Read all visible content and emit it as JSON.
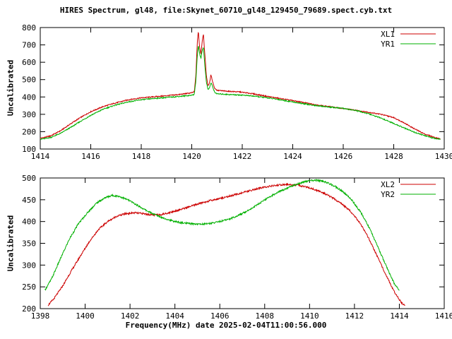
{
  "title": "HIRES Spectrum, gl48, file:Skynet_60710_gl48_129450_79689.spect.cyb.txt",
  "xlabel": "Frequency(MHz) date 2025-02-04T11:00:56.000",
  "background_color": "#ffffff",
  "axis_color": "#000000",
  "chart_data": [
    {
      "type": "line",
      "title": "",
      "xlabel": "",
      "ylabel": "Uncalibrated",
      "xlim": [
        1414,
        1430
      ],
      "ylim": [
        100,
        800
      ],
      "xticks": [
        1414,
        1416,
        1418,
        1420,
        1422,
        1424,
        1426,
        1428,
        1430
      ],
      "yticks": [
        100,
        200,
        300,
        400,
        500,
        600,
        700,
        800
      ],
      "grid": false,
      "legend_position": "top-right",
      "series": [
        {
          "name": "XL1",
          "color": "#cc0000",
          "points": [
            [
              1414,
              162
            ],
            [
              1414.4,
              175
            ],
            [
              1414.8,
              205
            ],
            [
              1415.2,
              245
            ],
            [
              1415.6,
              282
            ],
            [
              1416,
              315
            ],
            [
              1416.5,
              345
            ],
            [
              1417,
              366
            ],
            [
              1417.5,
              384
            ],
            [
              1418,
              395
            ],
            [
              1418.5,
              401
            ],
            [
              1419,
              407
            ],
            [
              1419.5,
              414
            ],
            [
              1420,
              424
            ],
            [
              1420.1,
              430
            ],
            [
              1420.16,
              520
            ],
            [
              1420.22,
              720
            ],
            [
              1420.26,
              780
            ],
            [
              1420.3,
              700
            ],
            [
              1420.36,
              645
            ],
            [
              1420.42,
              730
            ],
            [
              1420.46,
              765
            ],
            [
              1420.52,
              640
            ],
            [
              1420.58,
              520
            ],
            [
              1420.64,
              465
            ],
            [
              1420.7,
              478
            ],
            [
              1420.76,
              528
            ],
            [
              1420.82,
              492
            ],
            [
              1420.9,
              452
            ],
            [
              1421,
              438
            ],
            [
              1421.4,
              433
            ],
            [
              1421.9,
              429
            ],
            [
              1422.4,
              419
            ],
            [
              1423,
              403
            ],
            [
              1423.5,
              391
            ],
            [
              1424,
              379
            ],
            [
              1424.5,
              366
            ],
            [
              1425,
              353
            ],
            [
              1425.5,
              343
            ],
            [
              1426,
              333
            ],
            [
              1426.5,
              323
            ],
            [
              1427,
              312
            ],
            [
              1427.5,
              300
            ],
            [
              1428,
              281
            ],
            [
              1428.4,
              252
            ],
            [
              1428.8,
              218
            ],
            [
              1429.2,
              188
            ],
            [
              1429.6,
              168
            ],
            [
              1429.85,
              158
            ]
          ]
        },
        {
          "name": "YR1",
          "color": "#00b000",
          "points": [
            [
              1414,
              156
            ],
            [
              1414.4,
              166
            ],
            [
              1414.8,
              190
            ],
            [
              1415.2,
              224
            ],
            [
              1415.6,
              260
            ],
            [
              1416,
              294
            ],
            [
              1416.5,
              330
            ],
            [
              1417,
              354
            ],
            [
              1417.5,
              372
            ],
            [
              1418,
              384
            ],
            [
              1418.5,
              391
            ],
            [
              1419,
              397
            ],
            [
              1419.5,
              403
            ],
            [
              1420,
              410
            ],
            [
              1420.1,
              416
            ],
            [
              1420.16,
              490
            ],
            [
              1420.22,
              640
            ],
            [
              1420.26,
              700
            ],
            [
              1420.3,
              655
            ],
            [
              1420.36,
              622
            ],
            [
              1420.42,
              672
            ],
            [
              1420.46,
              688
            ],
            [
              1420.52,
              575
            ],
            [
              1420.58,
              485
            ],
            [
              1420.64,
              442
            ],
            [
              1420.7,
              452
            ],
            [
              1420.76,
              482
            ],
            [
              1420.82,
              462
            ],
            [
              1420.9,
              428
            ],
            [
              1421,
              418
            ],
            [
              1421.5,
              414
            ],
            [
              1422,
              411
            ],
            [
              1422.5,
              404
            ],
            [
              1423,
              395
            ],
            [
              1423.5,
              384
            ],
            [
              1424,
              371
            ],
            [
              1424.5,
              359
            ],
            [
              1425,
              349
            ],
            [
              1425.5,
              341
            ],
            [
              1426,
              334
            ],
            [
              1426.5,
              322
            ],
            [
              1427,
              303
            ],
            [
              1427.5,
              278
            ],
            [
              1428,
              247
            ],
            [
              1428.4,
              222
            ],
            [
              1428.8,
              198
            ],
            [
              1429.2,
              178
            ],
            [
              1429.6,
              162
            ],
            [
              1429.85,
              156
            ]
          ]
        }
      ]
    },
    {
      "type": "line",
      "title": "",
      "xlabel": "Frequency(MHz) date 2025-02-04T11:00:56.000",
      "ylabel": "Uncalibrated",
      "xlim": [
        1398,
        1416
      ],
      "ylim": [
        200,
        500
      ],
      "xticks": [
        1398,
        1400,
        1402,
        1404,
        1406,
        1408,
        1410,
        1412,
        1414,
        1416
      ],
      "yticks": [
        200,
        250,
        300,
        350,
        400,
        450,
        500
      ],
      "grid": false,
      "legend_position": "top-right",
      "series": [
        {
          "name": "XL2",
          "color": "#cc0000",
          "points": [
            [
              1398.35,
              208
            ],
            [
              1398.6,
              222
            ],
            [
              1399,
              252
            ],
            [
              1399.4,
              288
            ],
            [
              1399.8,
              322
            ],
            [
              1400.2,
              355
            ],
            [
              1400.6,
              382
            ],
            [
              1401,
              400
            ],
            [
              1401.4,
              412
            ],
            [
              1401.8,
              418
            ],
            [
              1402.2,
              420
            ],
            [
              1402.6,
              418
            ],
            [
              1403,
              415
            ],
            [
              1403.4,
              416
            ],
            [
              1403.8,
              421
            ],
            [
              1404.2,
              427
            ],
            [
              1404.6,
              433
            ],
            [
              1405,
              440
            ],
            [
              1405.5,
              447
            ],
            [
              1406,
              453
            ],
            [
              1406.5,
              459
            ],
            [
              1407,
              466
            ],
            [
              1407.5,
              473
            ],
            [
              1408,
              479
            ],
            [
              1408.5,
              483
            ],
            [
              1409,
              485
            ],
            [
              1409.4,
              484
            ],
            [
              1409.8,
              480
            ],
            [
              1410.2,
              474
            ],
            [
              1410.6,
              466
            ],
            [
              1411,
              455
            ],
            [
              1411.4,
              442
            ],
            [
              1411.8,
              425
            ],
            [
              1412.2,
              400
            ],
            [
              1412.6,
              365
            ],
            [
              1413,
              322
            ],
            [
              1413.4,
              278
            ],
            [
              1413.8,
              236
            ],
            [
              1414.1,
              213
            ],
            [
              1414.25,
              207
            ]
          ]
        },
        {
          "name": "YR2",
          "color": "#00b000",
          "points": [
            [
              1398.2,
              242
            ],
            [
              1398.5,
              268
            ],
            [
              1398.9,
              315
            ],
            [
              1399.3,
              360
            ],
            [
              1399.7,
              395
            ],
            [
              1400.1,
              420
            ],
            [
              1400.5,
              442
            ],
            [
              1400.9,
              455
            ],
            [
              1401.2,
              460
            ],
            [
              1401.5,
              458
            ],
            [
              1401.9,
              450
            ],
            [
              1402.3,
              438
            ],
            [
              1402.7,
              426
            ],
            [
              1403.1,
              416
            ],
            [
              1403.5,
              408
            ],
            [
              1403.9,
              401
            ],
            [
              1404.3,
              397
            ],
            [
              1404.7,
              395
            ],
            [
              1405.1,
              394
            ],
            [
              1405.5,
              395
            ],
            [
              1405.9,
              399
            ],
            [
              1406.3,
              404
            ],
            [
              1406.7,
              411
            ],
            [
              1407.1,
              421
            ],
            [
              1407.5,
              433
            ],
            [
              1407.9,
              446
            ],
            [
              1408.3,
              459
            ],
            [
              1408.7,
              470
            ],
            [
              1409.1,
              479
            ],
            [
              1409.5,
              487
            ],
            [
              1409.9,
              493
            ],
            [
              1410.3,
              495
            ],
            [
              1410.7,
              491
            ],
            [
              1411.1,
              482
            ],
            [
              1411.5,
              468
            ],
            [
              1411.9,
              448
            ],
            [
              1412.3,
              420
            ],
            [
              1412.7,
              382
            ],
            [
              1413.1,
              335
            ],
            [
              1413.5,
              288
            ],
            [
              1413.8,
              255
            ],
            [
              1414,
              242
            ]
          ]
        }
      ]
    }
  ]
}
